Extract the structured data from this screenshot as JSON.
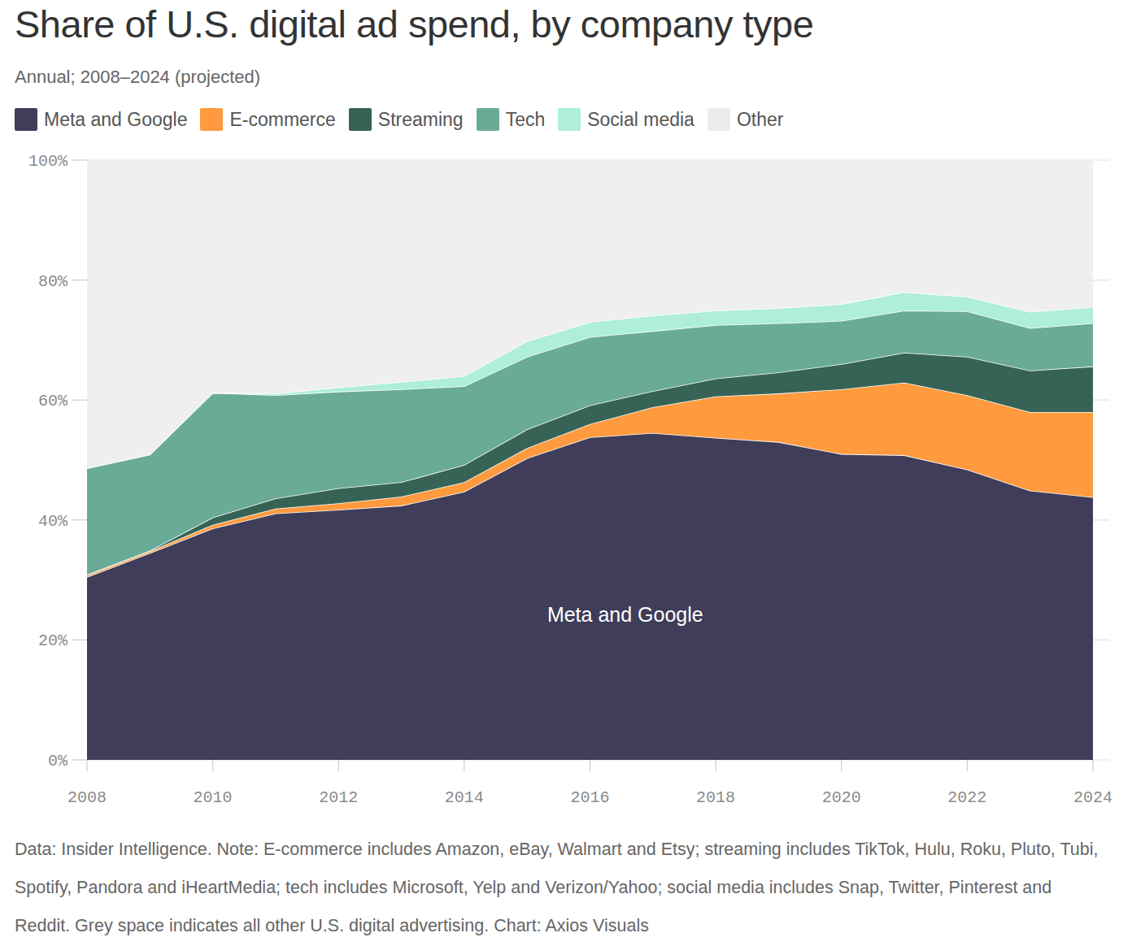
{
  "chart_data": {
    "type": "area",
    "stacked": true,
    "grid": true,
    "legend": "top",
    "title": "Share of U.S. digital ad spend, by company type",
    "subtitle": "Annual; 2008–2024 (projected)",
    "annotation": "Meta and Google",
    "source": "Data: Insider Intelligence. Note: E-commerce includes Amazon, eBay, Walmart and Etsy; streaming includes TikTok, Hulu, Roku, Pluto, Tubi, Spotify, Pandora and iHeartMedia; tech includes Microsoft, Yelp and Verizon/Yahoo; social media includes Snap, Twitter, Pinterest and Reddit. Grey space indicates all other U.S. digital advertising. Chart: Axios Visuals",
    "x": [
      2008,
      2009,
      2010,
      2011,
      2012,
      2013,
      2014,
      2015,
      2016,
      2017,
      2018,
      2019,
      2020,
      2021,
      2022,
      2023,
      2024
    ],
    "xlim": [
      2008,
      2024
    ],
    "xticks": [
      2008,
      2010,
      2012,
      2014,
      2016,
      2018,
      2020,
      2022,
      2024
    ],
    "ylim": [
      0,
      100
    ],
    "yticks": [
      {
        "value": 0,
        "label": "0%"
      },
      {
        "value": 20,
        "label": "20%"
      },
      {
        "value": 40,
        "label": "40%"
      },
      {
        "value": 60,
        "label": "60%"
      },
      {
        "value": 80,
        "label": "80%"
      },
      {
        "value": 100,
        "label": "100%"
      }
    ],
    "series": [
      {
        "name": "Meta and Google",
        "color": "#3f3d5a",
        "values": [
          30.5,
          34.5,
          38.6,
          41.1,
          41.7,
          42.4,
          44.7,
          50.3,
          53.8,
          54.5,
          53.7,
          53.0,
          51.0,
          50.8,
          48.4,
          44.9,
          43.8
        ]
      },
      {
        "name": "E-commerce",
        "color": "#ff9a3f",
        "values": [
          0.3,
          0.3,
          0.6,
          0.8,
          1.1,
          1.5,
          1.6,
          1.7,
          2.2,
          4.3,
          6.9,
          8.1,
          10.8,
          12.1,
          12.4,
          13.1,
          14.2
        ]
      },
      {
        "name": "Streaming",
        "color": "#366355",
        "values": [
          0.1,
          0.1,
          1.2,
          1.7,
          2.5,
          2.4,
          2.9,
          3.1,
          3.1,
          2.7,
          3.0,
          3.5,
          4.2,
          5.0,
          6.4,
          6.9,
          7.6
        ]
      },
      {
        "name": "Tech",
        "color": "#6aab97",
        "values": [
          17.7,
          16.0,
          20.8,
          17.2,
          16.1,
          15.5,
          13.1,
          12.1,
          11.4,
          10.0,
          8.9,
          8.2,
          7.2,
          7.0,
          7.6,
          7.1,
          7.2
        ]
      },
      {
        "name": "Social media",
        "color": "#aeeedb",
        "values": [
          0,
          0,
          0,
          0.3,
          0.7,
          1.2,
          1.7,
          2.6,
          2.5,
          2.6,
          2.4,
          2.5,
          2.8,
          3.1,
          2.4,
          2.7,
          2.7
        ]
      },
      {
        "name": "Other",
        "color": "#ececec",
        "values": [
          51.4,
          49.1,
          38.8,
          38.9,
          37.9,
          37.0,
          36.0,
          30.2,
          27.0,
          25.9,
          25.1,
          24.7,
          24.0,
          22.0,
          22.8,
          25.3,
          24.5
        ]
      }
    ]
  }
}
